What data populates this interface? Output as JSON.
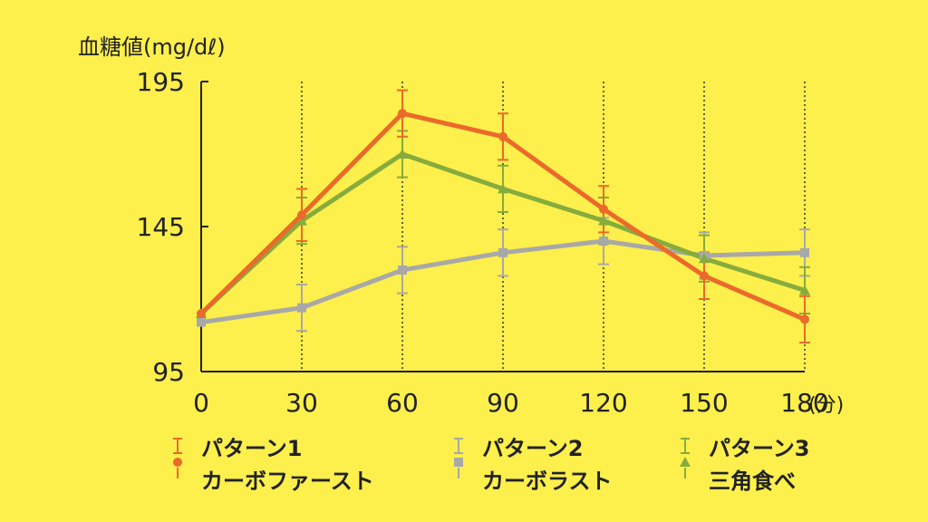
{
  "chart_data": {
    "type": "line",
    "ylabel": "血糖値(mg/dℓ)",
    "x_unit": "(分)",
    "x": [
      0,
      30,
      60,
      90,
      120,
      150,
      180
    ],
    "xticks": [
      "0",
      "30",
      "60",
      "90",
      "120",
      "150",
      "180"
    ],
    "yticks": [
      "95",
      "145",
      "195"
    ],
    "ylim": [
      95,
      195
    ],
    "xlim": [
      0,
      180
    ],
    "vertical_gridlines": [
      30,
      60,
      90,
      120,
      150,
      180
    ],
    "series": [
      {
        "name": "パターン1 カーボファースト",
        "label_line1": "パターン1",
        "label_line2": "カーボファースト",
        "color": "#ea6a2a",
        "marker": "circle",
        "values": [
          115,
          149,
          184,
          176,
          151,
          128,
          113
        ],
        "error": [
          0,
          9,
          8,
          8,
          8,
          8,
          8
        ]
      },
      {
        "name": "パターン2 カーボラスト",
        "label_line1": "パターン2",
        "label_line2": "カーボラスト",
        "color": "#a8a8a8",
        "marker": "square",
        "values": [
          112,
          117,
          130,
          136,
          140,
          135,
          136
        ],
        "error": [
          0,
          8,
          8,
          8,
          8,
          8,
          8
        ]
      },
      {
        "name": "パターン3 三角食べ",
        "label_line1": "パターン3",
        "label_line2": "三角食べ",
        "color": "#86ac3c",
        "marker": "triangle",
        "values": [
          115,
          147,
          170,
          158,
          147,
          134,
          123
        ],
        "error": [
          0,
          8,
          8,
          8,
          8,
          8,
          8
        ]
      }
    ]
  }
}
